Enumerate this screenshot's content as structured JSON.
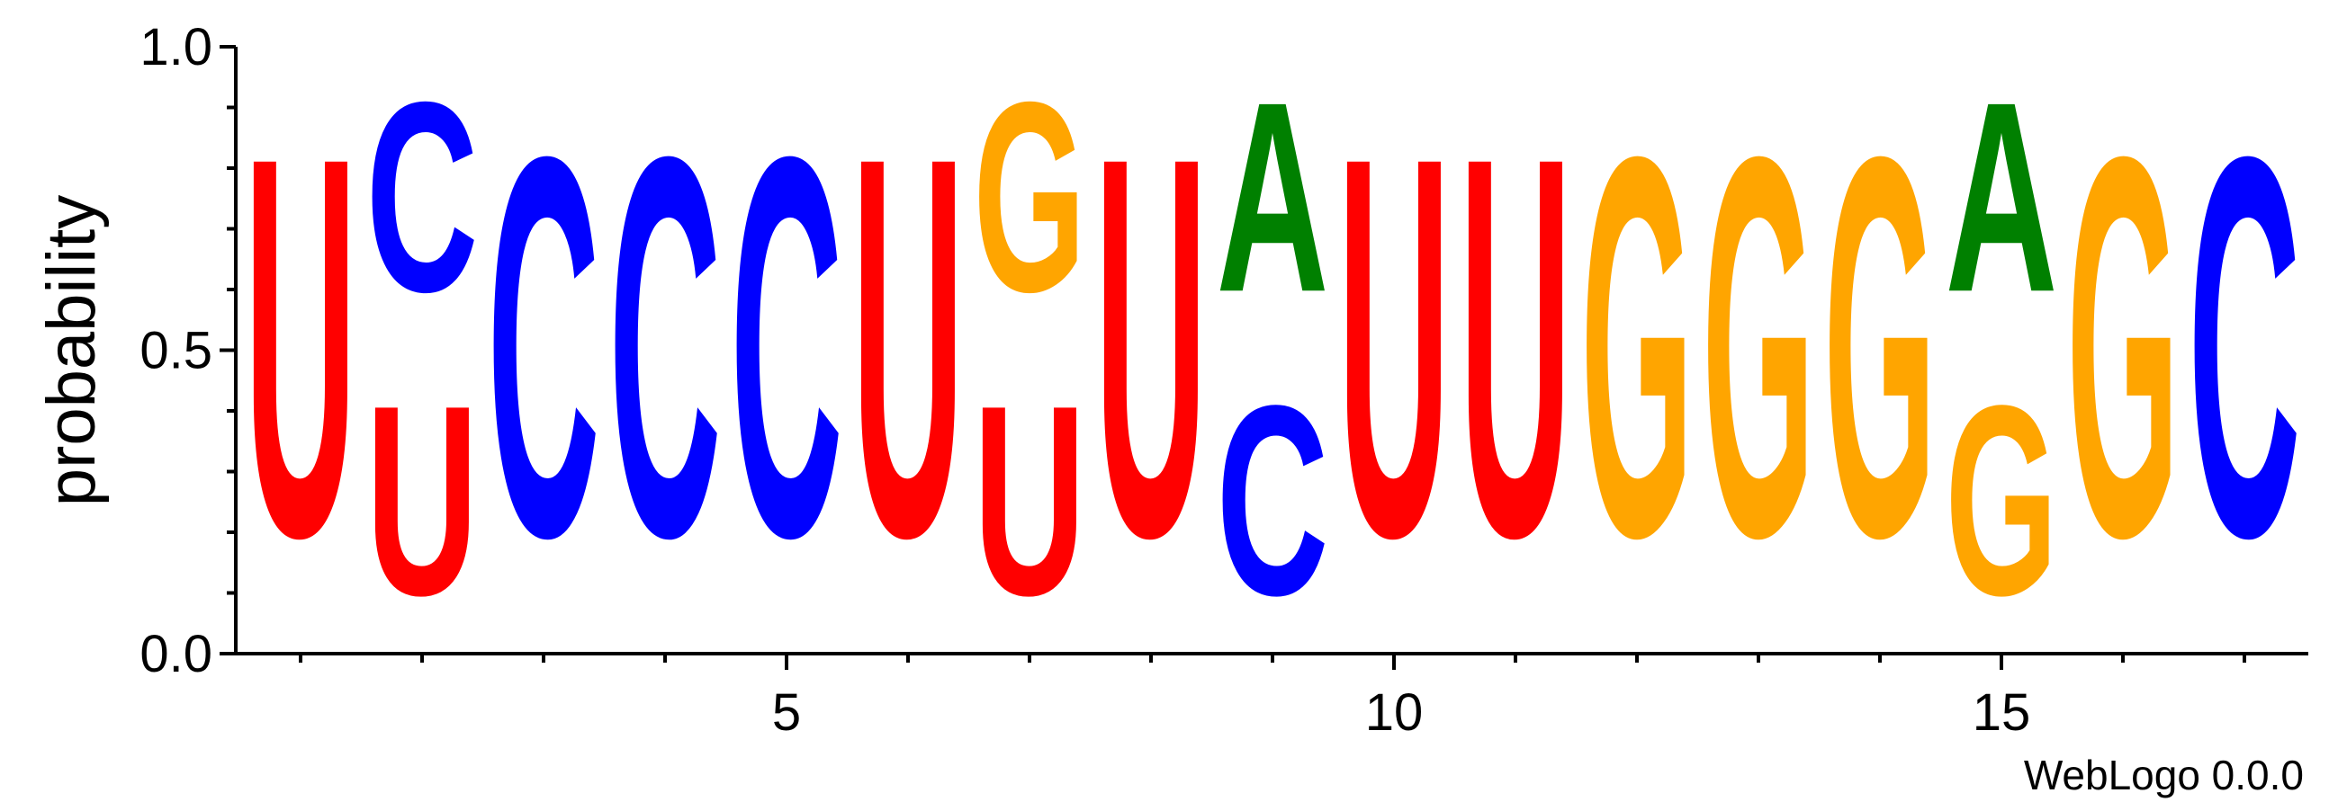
{
  "chart_data": {
    "type": "sequence-logo",
    "ylabel": "probability",
    "ylim": [
      0,
      1
    ],
    "yticks": [
      "0.0",
      "0.5",
      "1.0"
    ],
    "xticks": [
      "5",
      "10",
      "15"
    ],
    "xtick_values": [
      5,
      10,
      15
    ],
    "credit": "WebLogo 0.0.0",
    "colors": {
      "U": "#ff0000",
      "C": "#0000ff",
      "G": "#ffa500",
      "A": "#008000"
    },
    "positions": [
      {
        "pos": 1,
        "letters": [
          {
            "base": "U",
            "p": 1.0
          }
        ]
      },
      {
        "pos": 2,
        "letters": [
          {
            "base": "U",
            "p": 0.5
          },
          {
            "base": "C",
            "p": 0.5
          }
        ]
      },
      {
        "pos": 3,
        "letters": [
          {
            "base": "C",
            "p": 1.0
          }
        ]
      },
      {
        "pos": 4,
        "letters": [
          {
            "base": "C",
            "p": 1.0
          }
        ]
      },
      {
        "pos": 5,
        "letters": [
          {
            "base": "C",
            "p": 1.0
          }
        ]
      },
      {
        "pos": 6,
        "letters": [
          {
            "base": "U",
            "p": 1.0
          }
        ]
      },
      {
        "pos": 7,
        "letters": [
          {
            "base": "U",
            "p": 0.5
          },
          {
            "base": "G",
            "p": 0.5
          }
        ]
      },
      {
        "pos": 8,
        "letters": [
          {
            "base": "U",
            "p": 1.0
          }
        ]
      },
      {
        "pos": 9,
        "letters": [
          {
            "base": "C",
            "p": 0.5
          },
          {
            "base": "A",
            "p": 0.5
          }
        ]
      },
      {
        "pos": 10,
        "letters": [
          {
            "base": "U",
            "p": 1.0
          }
        ]
      },
      {
        "pos": 11,
        "letters": [
          {
            "base": "U",
            "p": 1.0
          }
        ]
      },
      {
        "pos": 12,
        "letters": [
          {
            "base": "G",
            "p": 1.0
          }
        ]
      },
      {
        "pos": 13,
        "letters": [
          {
            "base": "G",
            "p": 1.0
          }
        ]
      },
      {
        "pos": 14,
        "letters": [
          {
            "base": "G",
            "p": 1.0
          }
        ]
      },
      {
        "pos": 15,
        "letters": [
          {
            "base": "G",
            "p": 0.5
          },
          {
            "base": "A",
            "p": 0.5
          }
        ]
      },
      {
        "pos": 16,
        "letters": [
          {
            "base": "G",
            "p": 1.0
          }
        ]
      },
      {
        "pos": 17,
        "letters": [
          {
            "base": "C",
            "p": 1.0
          }
        ]
      }
    ]
  }
}
